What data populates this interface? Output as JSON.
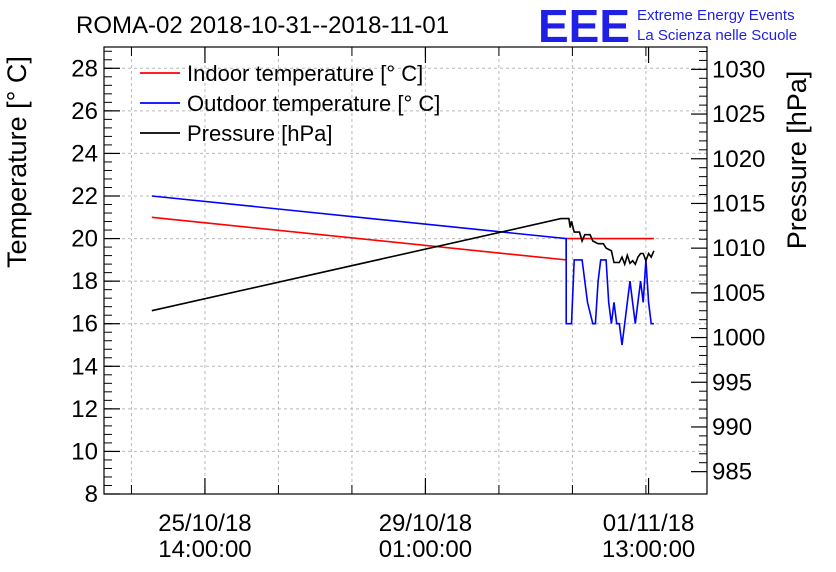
{
  "chart_data": {
    "type": "line",
    "title": "ROMA-02 2018-10-31--2018-11-01",
    "ylabel": "Temperature [° C]",
    "y2label": "Pressure [hPa]",
    "ylim": [
      8,
      29
    ],
    "y2lim": [
      982.5,
      1032.5
    ],
    "xlim": [
      "2018-10-24 00:00",
      "2018-11-02 11:00"
    ],
    "x_ticks": [
      {
        "date": "25/10/18",
        "time": "14:00:00",
        "x": "2018-10-25 14:00"
      },
      {
        "date": "29/10/18",
        "time": "01:00:00",
        "x": "2018-10-29 01:00"
      },
      {
        "date": "01/11/18",
        "time": "13:00:00",
        "x": "2018-11-01 13:00"
      }
    ],
    "y_ticks": [
      8,
      10,
      12,
      14,
      16,
      18,
      20,
      22,
      24,
      26,
      28
    ],
    "y2_ticks": [
      985,
      990,
      995,
      1000,
      1005,
      1010,
      1015,
      1020,
      1025,
      1030
    ],
    "grid": true,
    "legend_position": "top-left",
    "series": [
      {
        "name": "Indoor temperature [° C]",
        "axis": "left",
        "color": "#ff0000",
        "points": [
          [
            "2018-10-24 18:00",
            21.0
          ],
          [
            "2018-10-31 06:00",
            19.0
          ],
          [
            "2018-10-31 06:00",
            20.0
          ],
          [
            "2018-11-01 15:00",
            20.0
          ]
        ]
      },
      {
        "name": "Outdoor temperature [° C]",
        "axis": "left",
        "color": "#0000ff",
        "points": [
          [
            "2018-10-24 18:00",
            22.0
          ],
          [
            "2018-10-31 06:00",
            20.0
          ],
          [
            "2018-10-31 06:00",
            16.0
          ],
          [
            "2018-10-31 08:00",
            16.0
          ],
          [
            "2018-10-31 09:00",
            19.0
          ],
          [
            "2018-10-31 12:00",
            19.0
          ],
          [
            "2018-10-31 14:00",
            17.0
          ],
          [
            "2018-10-31 16:00",
            16.0
          ],
          [
            "2018-10-31 17:00",
            16.0
          ],
          [
            "2018-10-31 18:00",
            18.0
          ],
          [
            "2018-10-31 19:00",
            19.0
          ],
          [
            "2018-10-31 21:00",
            19.0
          ],
          [
            "2018-10-31 22:00",
            17.0
          ],
          [
            "2018-10-31 23:00",
            16.0
          ],
          [
            "2018-11-01 00:00",
            17.0
          ],
          [
            "2018-11-01 01:00",
            16.0
          ],
          [
            "2018-11-01 02:00",
            16.0
          ],
          [
            "2018-11-01 03:00",
            15.0
          ],
          [
            "2018-11-01 04:00",
            16.0
          ],
          [
            "2018-11-01 05:00",
            17.0
          ],
          [
            "2018-11-01 06:00",
            18.0
          ],
          [
            "2018-11-01 07:00",
            17.0
          ],
          [
            "2018-11-01 08:00",
            16.0
          ],
          [
            "2018-11-01 09:00",
            17.0
          ],
          [
            "2018-11-01 10:00",
            18.0
          ],
          [
            "2018-11-01 11:00",
            17.0
          ],
          [
            "2018-11-01 12:00",
            19.0
          ],
          [
            "2018-11-01 13:00",
            17.0
          ],
          [
            "2018-11-01 14:00",
            16.0
          ],
          [
            "2018-11-01 15:00",
            16.0
          ]
        ]
      },
      {
        "name": "Pressure [hPa]",
        "axis": "right",
        "color": "#000000",
        "points": [
          [
            "2018-10-24 18:00",
            1003.0
          ],
          [
            "2018-10-31 04:00",
            1013.3
          ],
          [
            "2018-10-31 07:00",
            1013.3
          ],
          [
            "2018-10-31 07:30",
            1012.3
          ],
          [
            "2018-10-31 08:00",
            1013.0
          ],
          [
            "2018-10-31 09:00",
            1011.8
          ],
          [
            "2018-10-31 11:00",
            1011.8
          ],
          [
            "2018-10-31 12:00",
            1010.8
          ],
          [
            "2018-10-31 13:00",
            1011.5
          ],
          [
            "2018-10-31 15:00",
            1011.5
          ],
          [
            "2018-10-31 16:00",
            1010.8
          ],
          [
            "2018-10-31 18:00",
            1010.5
          ],
          [
            "2018-10-31 20:00",
            1010.5
          ],
          [
            "2018-10-31 21:00",
            1010.0
          ],
          [
            "2018-10-31 23:00",
            1009.7
          ],
          [
            "2018-11-01 00:00",
            1008.4
          ],
          [
            "2018-11-01 02:00",
            1008.4
          ],
          [
            "2018-11-01 03:00",
            1009.0
          ],
          [
            "2018-11-01 04:00",
            1008.2
          ],
          [
            "2018-11-01 05:00",
            1009.2
          ],
          [
            "2018-11-01 06:00",
            1008.3
          ],
          [
            "2018-11-01 07:00",
            1008.6
          ],
          [
            "2018-11-01 08:00",
            1008.2
          ],
          [
            "2018-11-01 09:00",
            1009.0
          ],
          [
            "2018-11-01 10:00",
            1009.4
          ],
          [
            "2018-11-01 11:00",
            1009.4
          ],
          [
            "2018-11-01 12:00",
            1008.6
          ],
          [
            "2018-11-01 13:00",
            1009.4
          ],
          [
            "2018-11-01 14:00",
            1009.0
          ],
          [
            "2018-11-01 15:00",
            1009.7
          ]
        ]
      }
    ]
  },
  "branding": {
    "logo": "EEE",
    "line1": "Extreme Energy Events",
    "line2": "La Scienza nelle Scuole",
    "color": "#1f1fe6"
  }
}
